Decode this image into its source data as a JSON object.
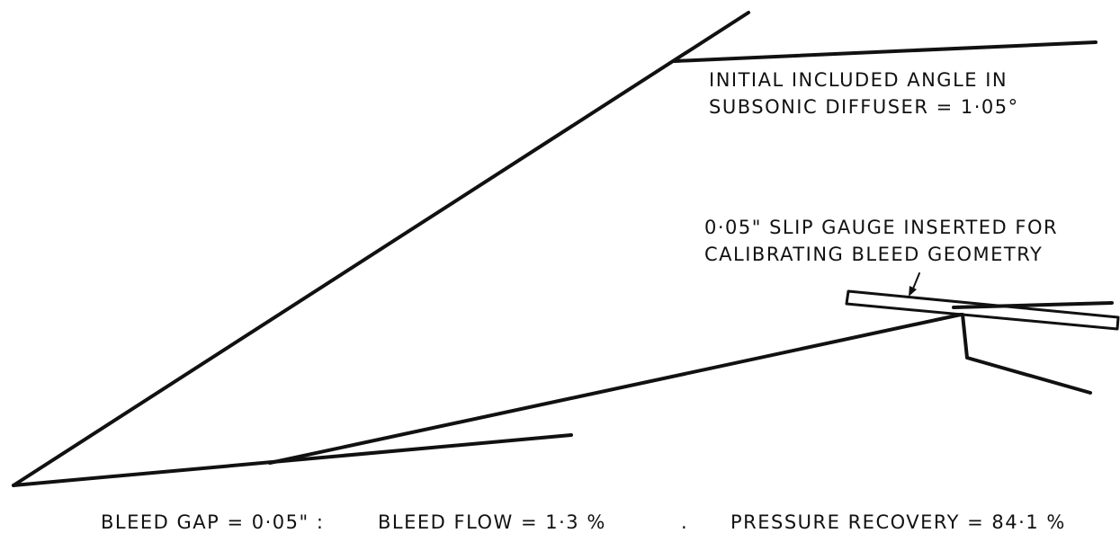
{
  "annotations": {
    "diffuser": [
      "INITIAL INCLUDED ANGLE IN",
      "SUBSONIC DIFFUSER = 1·05°"
    ],
    "gauge": [
      "0·05\" SLIP GAUGE INSERTED FOR",
      "CALIBRATING BLEED GEOMETRY"
    ]
  },
  "caption": [
    "BLEED GAP = 0·05\" :",
    "BLEED FLOW = 1·3 %",
    ".",
    "PRESSURE RECOVERY = 84·1 %"
  ]
}
